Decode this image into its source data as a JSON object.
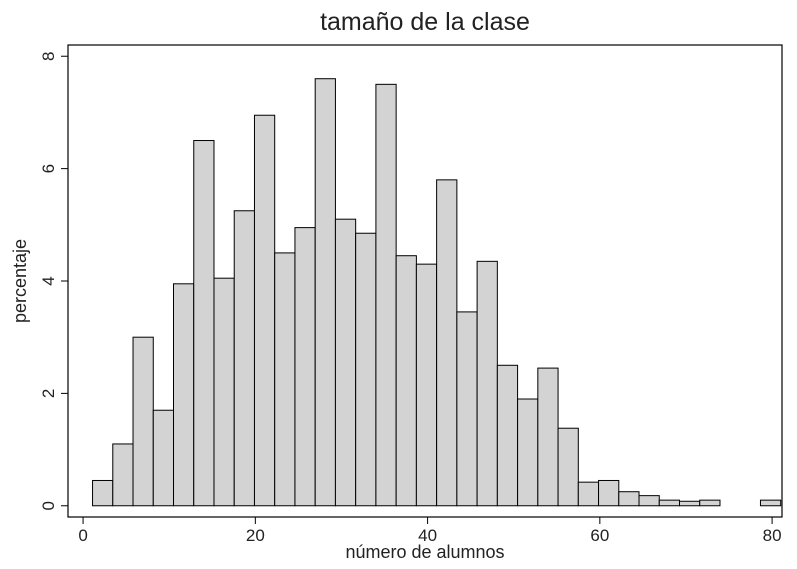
{
  "chart_data": {
    "type": "histogram",
    "title": "tamaño de la clase",
    "x_label": "número de alumnos",
    "y_label": "percentaje",
    "bins": [
      1.1,
      3.45,
      5.8,
      8.15,
      10.5,
      12.85,
      15.2,
      17.55,
      19.9,
      22.25,
      24.6,
      26.95,
      29.3,
      31.65,
      34,
      36.35,
      38.7,
      41.05,
      43.4,
      45.75,
      48.1,
      50.45,
      52.8,
      55.15,
      57.5,
      59.85,
      62.2,
      64.55,
      66.9,
      69.25,
      71.6,
      73.95,
      76.3,
      78.65,
      81
    ],
    "values": [
      0.45,
      1.1,
      3.0,
      1.7,
      3.95,
      6.5,
      4.05,
      5.25,
      6.95,
      4.5,
      4.95,
      7.6,
      5.1,
      4.85,
      7.5,
      4.45,
      4.3,
      5.8,
      3.45,
      4.35,
      2.5,
      1.9,
      2.45,
      1.38,
      0.42,
      0.45,
      0.25,
      0.18,
      0.1,
      0.08,
      0.1,
      0,
      0,
      0.1
    ],
    "color": "#d3d3d3",
    "xlim": [
      -1.75,
      81.15
    ],
    "xticks": [
      0,
      20,
      40,
      60,
      80
    ],
    "ylim": [
      -0.2,
      8.2
    ],
    "yticks": [
      0,
      2,
      4,
      6,
      8
    ]
  }
}
